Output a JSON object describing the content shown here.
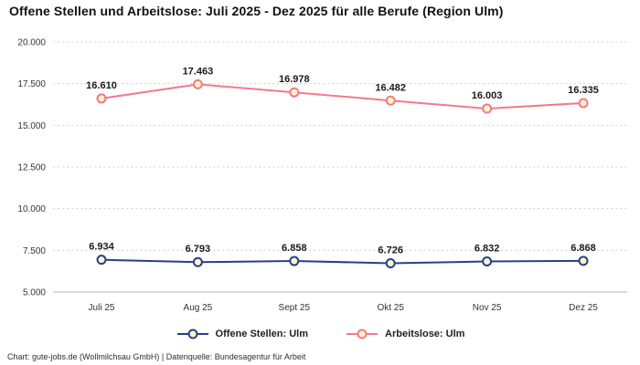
{
  "title": "Offene Stellen und Arbeitslose: Juli 2025 - Dez 2025 für alle Berufe (Region Ulm)",
  "footer": "Chart: gute-jobs.de (Wollmilchsau GmbH) | Datenquelle: Bundesagentur für Arbeit",
  "colors": {
    "open": "#27408b",
    "unemployed": "#f4798b",
    "marker_fill": "#fdf6c3",
    "grid": "#d0d0d0",
    "baseline": "#b9b9b9"
  },
  "chart_data": {
    "type": "line",
    "categories": [
      "Juli 25",
      "Aug 25",
      "Sept 25",
      "Okt 25",
      "Nov 25",
      "Dez 25"
    ],
    "series": [
      {
        "name": "Offene Stellen: Ulm",
        "color_key": "open",
        "values": [
          6934,
          6793,
          6858,
          6726,
          6832,
          6868
        ]
      },
      {
        "name": "Arbeitslose: Ulm",
        "color_key": "unemployed",
        "values": [
          16610,
          17463,
          16978,
          16482,
          16003,
          16335
        ]
      }
    ],
    "ylim": [
      5000,
      20000
    ],
    "yticks": [
      5000,
      7500,
      10000,
      12500,
      15000,
      17500,
      20000
    ],
    "grid": true,
    "legend_position": "bottom",
    "xlabel": "",
    "ylabel": ""
  }
}
